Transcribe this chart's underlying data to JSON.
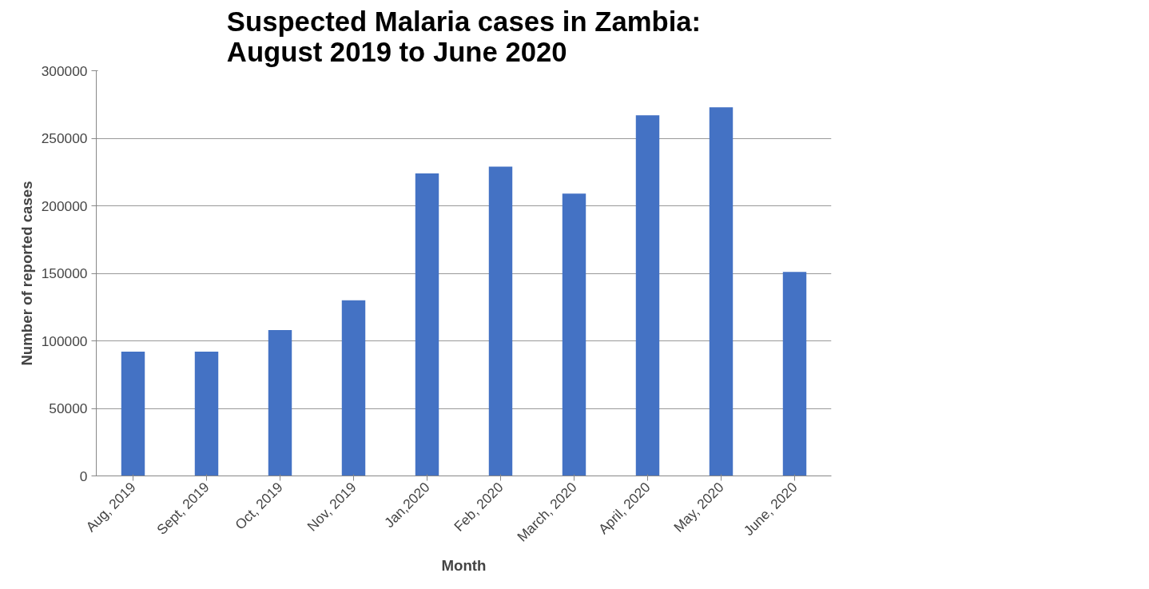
{
  "chart_data": {
    "type": "bar",
    "title": "Suspected Malaria cases in Zambia: August 2019 to June 2020",
    "xlabel": "Month",
    "ylabel": "Number of reported cases",
    "categories": [
      "Aug, 2019",
      "Sept, 2019",
      "Oct, 2019",
      "Nov, 2019",
      "Jan,2020",
      "Feb, 2020",
      "March, 2020",
      "April, 2020",
      "May, 2020",
      "June, 2020"
    ],
    "series": [
      {
        "color": "#4472c4",
        "values": [
          92000,
          92000,
          108000,
          130000,
          224000,
          229000,
          209000,
          267000,
          273000,
          151000
        ]
      }
    ],
    "ylim": [
      0,
      300000
    ],
    "yticks": [
      0,
      50000,
      100000,
      150000,
      200000,
      250000,
      300000
    ],
    "grid": "y"
  }
}
